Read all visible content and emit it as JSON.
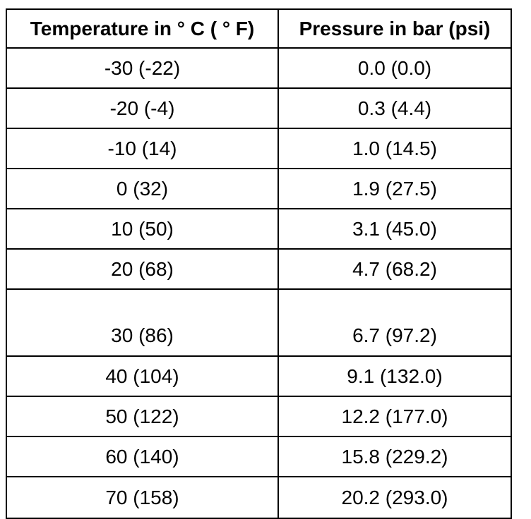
{
  "table": {
    "headers": [
      "Temperature in ° C ( ° F)",
      "Pressure in bar (psi)"
    ],
    "rows": [
      [
        "-30 (-22)",
        "0.0 (0.0)"
      ],
      [
        "-20 (-4)",
        "0.3 (4.4)"
      ],
      [
        "-10 (14)",
        "1.0 (14.5)"
      ],
      [
        "0 (32)",
        "1.9 (27.5)"
      ],
      [
        "10 (50)",
        "3.1 (45.0)"
      ],
      [
        "20 (68)",
        "4.7 (68.2)"
      ],
      [
        "30 (86)",
        "6.7 (97.2)"
      ],
      [
        "40 (104)",
        "9.1 (132.0)"
      ],
      [
        "50 (122)",
        "12.2 (177.0)"
      ],
      [
        "60 (140)",
        "15.8 (229.2)"
      ],
      [
        "70 (158)",
        "20.2 (293.0)"
      ]
    ]
  }
}
